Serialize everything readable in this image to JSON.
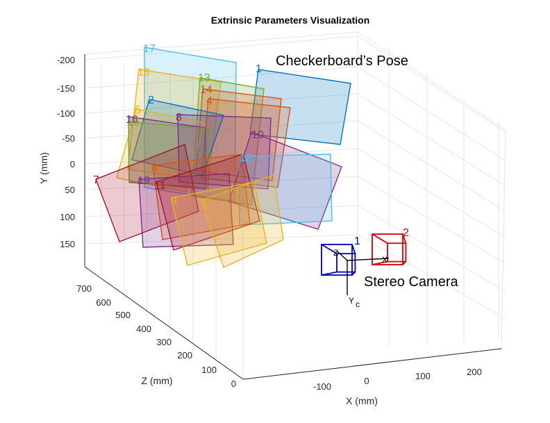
{
  "chart_data": {
    "type": "scatter",
    "title": "Extrinsic Parameters Visualization",
    "xlabel": "X (mm)",
    "ylabel": "Y (mm)",
    "zlabel": "Z (mm)",
    "x_ticks": [
      "-100",
      "0",
      "100",
      "200"
    ],
    "y_ticks": [
      "-200",
      "-150",
      "-100",
      "-50",
      "0",
      "50",
      "100",
      "150"
    ],
    "z_ticks": [
      "0",
      "100",
      "200",
      "300",
      "400",
      "500",
      "600",
      "700"
    ],
    "grid": true,
    "annotations": [
      "Checkerboard’s Pose",
      "Stereo Camera"
    ],
    "camera_labels": [
      "1",
      "2"
    ],
    "camera_axis_labels": [
      "Z",
      "X",
      "Y",
      "c"
    ],
    "colors": {
      "blue": "#0072BD",
      "orange": "#EDB120",
      "purple": "#7E2F8E",
      "green": "#77AC30",
      "cyan": "#4DBEEE",
      "red": "#D95319",
      "crimson": "#A2142F",
      "camera1": "#0000B4",
      "camera2": "#D20000"
    },
    "boards": [
      {
        "id": "1",
        "color": "blue"
      },
      {
        "id": "2",
        "color": "blue"
      },
      {
        "id": "3",
        "color": "red"
      },
      {
        "id": "4",
        "color": "red"
      },
      {
        "id": "5",
        "color": "orange"
      },
      {
        "id": "6",
        "color": "orange"
      },
      {
        "id": "7",
        "color": "crimson"
      },
      {
        "id": "8",
        "color": "purple"
      },
      {
        "id": "9",
        "color": "orange"
      },
      {
        "id": "10",
        "color": "purple"
      },
      {
        "id": "11",
        "color": "crimson"
      },
      {
        "id": "12",
        "color": "cyan"
      },
      {
        "id": "13",
        "color": "green"
      },
      {
        "id": "14",
        "color": "red"
      },
      {
        "id": "15",
        "color": "green"
      },
      {
        "id": "16",
        "color": "purple"
      },
      {
        "id": "17",
        "color": "cyan"
      },
      {
        "id": "18",
        "color": "orange"
      },
      {
        "id": "19",
        "color": "purple"
      }
    ]
  }
}
